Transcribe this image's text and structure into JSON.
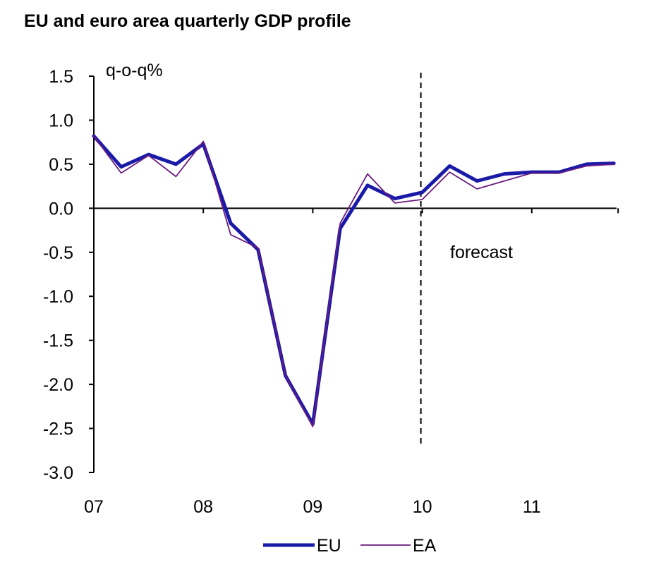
{
  "chart_data": {
    "type": "line",
    "title": "EU and euro area quarterly GDP profile",
    "ylabel": "q-o-q%",
    "xlabel": "",
    "x_tick_labels": [
      "07",
      "08",
      "09",
      "10",
      "11"
    ],
    "y_tick_labels": [
      "1.5",
      "1.0",
      "0.5",
      "0.0",
      "-0.5",
      "-1.0",
      "-1.5",
      "-2.0",
      "-2.5",
      "-3.0"
    ],
    "ylim": [
      -3.0,
      1.5
    ],
    "y_ticks": [
      1.5,
      1.0,
      0.5,
      0.0,
      -0.5,
      -1.0,
      -1.5,
      -2.0,
      -2.5,
      -3.0
    ],
    "x": [
      "07Q1",
      "07Q2",
      "07Q3",
      "07Q4",
      "08Q1",
      "08Q2",
      "08Q3",
      "08Q4",
      "09Q1",
      "09Q2",
      "09Q3",
      "09Q4",
      "10Q1",
      "10Q2",
      "10Q3",
      "10Q4",
      "11Q1",
      "11Q2",
      "11Q3",
      "11Q4"
    ],
    "series": [
      {
        "name": "EU",
        "color": "#1a1aa8",
        "values": [
          0.82,
          0.47,
          0.61,
          0.5,
          0.73,
          -0.17,
          -0.47,
          -1.9,
          -2.45,
          -0.23,
          0.26,
          0.11,
          0.18,
          0.48,
          0.31,
          0.39,
          0.41,
          0.41,
          0.5,
          0.51
        ]
      },
      {
        "name": "EA",
        "color": "#6a1a80",
        "values": [
          0.82,
          0.4,
          0.6,
          0.36,
          0.76,
          -0.3,
          -0.45,
          -1.9,
          -2.48,
          -0.17,
          0.39,
          0.06,
          0.1,
          0.41,
          0.22,
          0.31,
          0.4,
          0.4,
          0.48,
          0.5
        ]
      }
    ],
    "annotations": [
      {
        "text": "forecast",
        "x_quarter": "10Q1"
      }
    ],
    "forecast_start": "10Q1",
    "grid": false,
    "legend_position": "bottom-center"
  }
}
